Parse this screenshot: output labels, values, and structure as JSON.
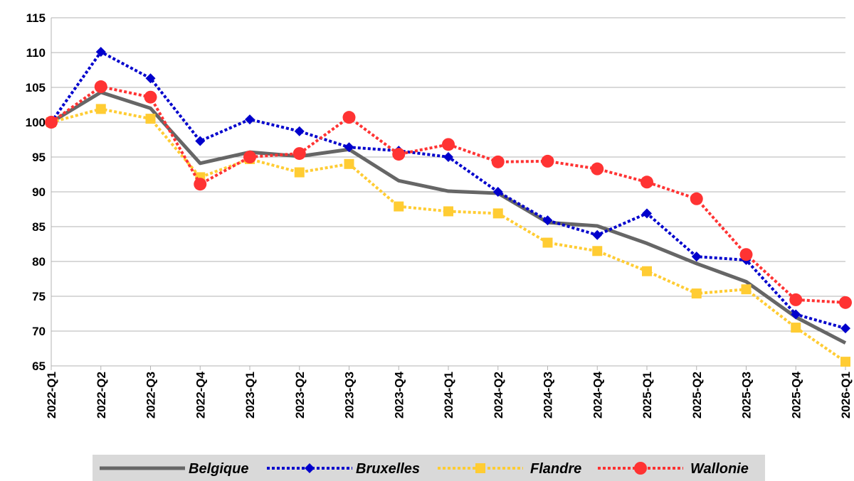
{
  "chart_data": {
    "type": "line",
    "categories": [
      "2022-Q1",
      "2022-Q2",
      "2022-Q3",
      "2022-Q4",
      "2023-Q1",
      "2023-Q2",
      "2023-Q3",
      "2023-Q4",
      "2024-Q1",
      "2024-Q2",
      "2024-Q3",
      "2024-Q4",
      "2025-Q1",
      "2025-Q2",
      "2025-Q3",
      "2025-Q4",
      "2026-Q1"
    ],
    "series": [
      {
        "name": "Belgique",
        "color": "#666666",
        "style": "solid",
        "marker": "none",
        "values": [
          100,
          104.3,
          102,
          94.1,
          95.7,
          95.1,
          96.1,
          91.6,
          90.1,
          89.8,
          85.6,
          85.1,
          82.6,
          79.7,
          77.1,
          72.0,
          68.3
        ]
      },
      {
        "name": "Bruxelles",
        "color": "#0000cc",
        "style": "dotted",
        "marker": "diamond",
        "values": [
          100,
          110.1,
          106.3,
          97.3,
          100.4,
          98.7,
          96.4,
          95.9,
          95.0,
          90.0,
          85.9,
          83.8,
          86.9,
          80.7,
          80.2,
          72.4,
          70.4
        ]
      },
      {
        "name": "Flandre",
        "color": "#ffcc33",
        "style": "dotted",
        "marker": "square",
        "values": [
          100,
          101.9,
          100.5,
          92.1,
          94.7,
          92.8,
          94.0,
          87.9,
          87.2,
          86.9,
          82.7,
          81.5,
          78.6,
          75.4,
          76.0,
          70.5,
          65.6
        ]
      },
      {
        "name": "Wallonie",
        "color": "#ff3333",
        "style": "dotted",
        "marker": "circle",
        "values": [
          100,
          105.1,
          103.6,
          91.1,
          95.0,
          95.5,
          100.7,
          95.4,
          96.8,
          94.3,
          94.4,
          93.3,
          91.4,
          89.0,
          81.0,
          74.5,
          74.1
        ]
      }
    ],
    "ylim": [
      65,
      115
    ],
    "yticks": [
      65,
      70,
      75,
      80,
      85,
      90,
      95,
      100,
      105,
      110,
      115
    ],
    "grid": true,
    "legend": "bottom"
  }
}
